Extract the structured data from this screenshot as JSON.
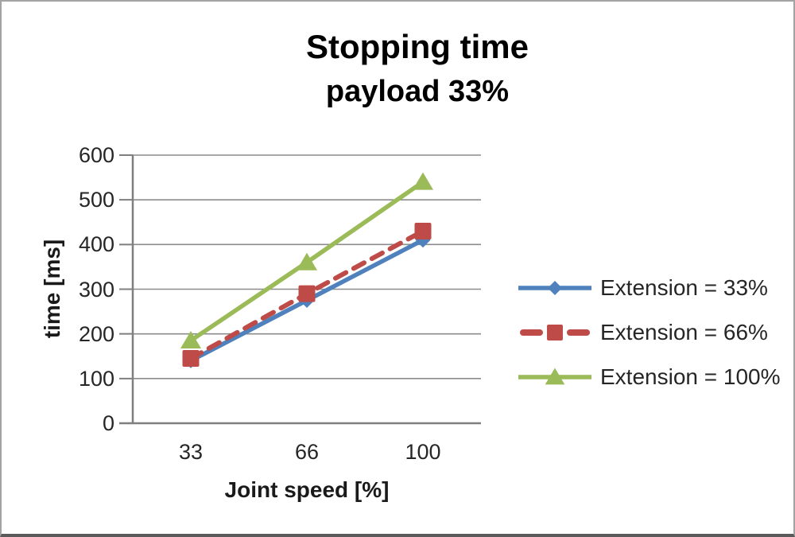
{
  "chart_data": {
    "type": "line",
    "title": "Stopping time",
    "subtitle": "payload 33%",
    "xlabel": "Joint speed [%]",
    "ylabel": "time [ms]",
    "categories": [
      "33",
      "66",
      "100"
    ],
    "y_ticks": [
      0,
      100,
      200,
      300,
      400,
      500,
      600
    ],
    "ylim": [
      0,
      600
    ],
    "grid": true,
    "legend_position": "right",
    "axis_color": "#7f7f7f",
    "grid_color": "#8c8c8c",
    "series": [
      {
        "name": "Extension = 33%",
        "values": [
          140,
          275,
          410
        ],
        "color": "#4F81BD",
        "marker": "diamond",
        "dash": "solid"
      },
      {
        "name": "Extension = 66%",
        "values": [
          145,
          290,
          430
        ],
        "color": "#BE4B48",
        "marker": "square",
        "dash": "dashed"
      },
      {
        "name": "Extension = 100%",
        "values": [
          185,
          360,
          540
        ],
        "color": "#9BBB59",
        "marker": "triangle",
        "dash": "solid"
      }
    ]
  }
}
